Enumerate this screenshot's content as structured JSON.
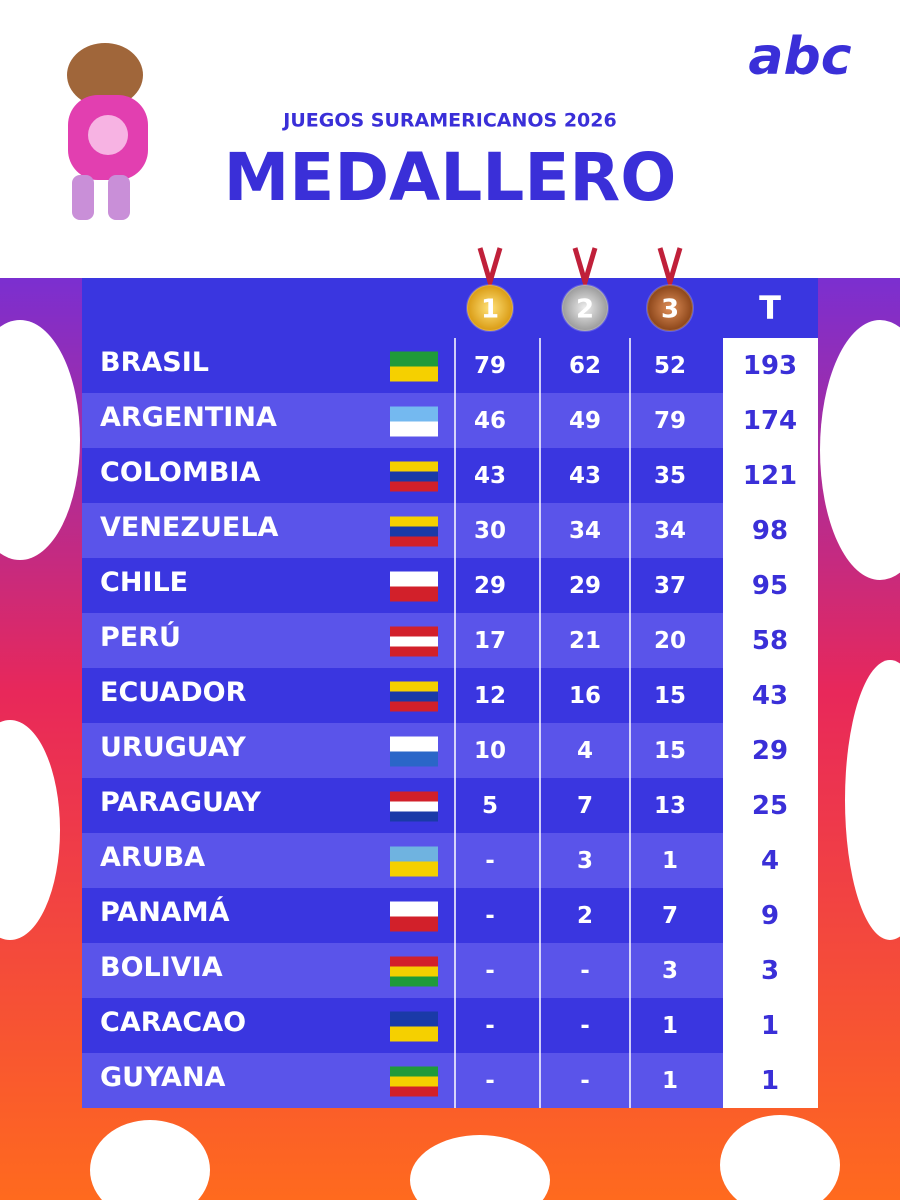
{
  "header": {
    "subtitle": "JUEGOS SURAMERICANOS 2026",
    "title": "MEDALLERO",
    "logo": "abc"
  },
  "table": {
    "columns": [
      "1",
      "2",
      "3",
      "T"
    ],
    "rows": [
      [
        "BRASIL",
        79,
        62,
        52,
        193
      ],
      [
        "ARGENTINA",
        46,
        49,
        79,
        174
      ],
      [
        "COLOMBIA",
        43,
        43,
        35,
        121
      ],
      [
        "VENEZUELA",
        30,
        34,
        34,
        98
      ],
      [
        "CHILE",
        29,
        29,
        37,
        95
      ],
      [
        "PERÚ",
        17,
        21,
        20,
        58
      ],
      [
        "ECUADOR",
        12,
        16,
        15,
        43
      ],
      [
        "URUGUAY",
        10,
        4,
        15,
        29
      ],
      [
        "PARAGUAY",
        5,
        7,
        13,
        25
      ],
      [
        "ARUBA",
        "-",
        3,
        1,
        4
      ],
      [
        "PANAMÁ",
        "-",
        2,
        7,
        9
      ],
      [
        "BOLIVIA",
        "-",
        "-",
        3,
        3
      ],
      [
        "CARACAO",
        "-",
        "-",
        1,
        1
      ],
      [
        "GUYANA",
        "-",
        "-",
        1,
        1
      ]
    ]
  }
}
